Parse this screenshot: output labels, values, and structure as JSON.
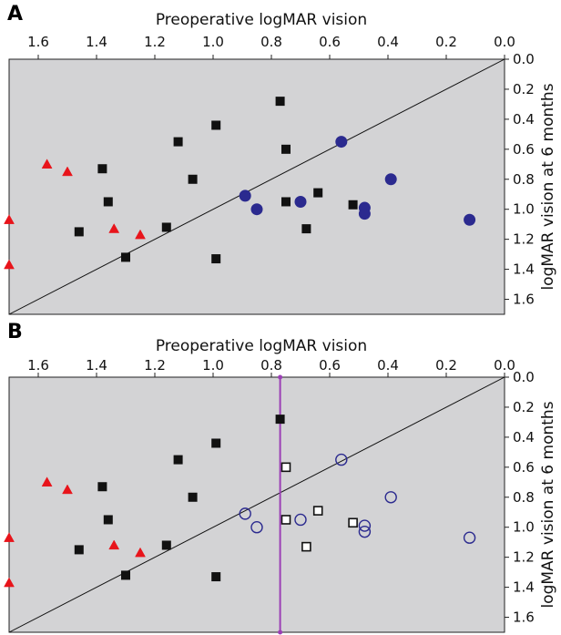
{
  "chart_data": [
    {
      "panel": "A",
      "type": "scatter",
      "title": "",
      "xlabel": "Preoperative logMAR vision",
      "ylabel": "logMAR vision at 6 months",
      "x_axis": {
        "reversed": true,
        "position": "top",
        "range": [
          1.7,
          0.0
        ],
        "ticks": [
          "1.6",
          "1.4",
          "1.2",
          "1.0",
          "0.8",
          "0.6",
          "0.4",
          "0.2",
          "0.0"
        ]
      },
      "y_axis": {
        "reversed": true,
        "position": "right",
        "range": [
          0.0,
          1.7
        ],
        "ticks": [
          "0.0",
          "0.2",
          "0.4",
          "0.6",
          "0.8",
          "1.0",
          "1.2",
          "1.4",
          "1.6"
        ]
      },
      "background": "#d3d3d5",
      "diagonal": true,
      "vertical_line": null,
      "series": [
        {
          "marker": "triangle",
          "fill": "#e8141b",
          "stroke": "#e8141b",
          "points": [
            [
              1.7,
              1.07
            ],
            [
              1.7,
              1.37
            ],
            [
              1.57,
              0.7
            ],
            [
              1.5,
              0.75
            ],
            [
              1.34,
              1.13
            ],
            [
              1.25,
              1.17
            ]
          ]
        },
        {
          "marker": "square",
          "fill": "#111111",
          "stroke": "#111111",
          "points": [
            [
              1.46,
              1.15
            ],
            [
              1.38,
              0.73
            ],
            [
              1.36,
              0.95
            ],
            [
              1.3,
              1.32
            ],
            [
              1.16,
              1.12
            ],
            [
              1.12,
              0.55
            ],
            [
              1.07,
              0.8
            ],
            [
              0.99,
              0.44
            ],
            [
              0.99,
              1.33
            ],
            [
              0.77,
              0.28
            ],
            [
              0.75,
              0.6
            ],
            [
              0.75,
              0.95
            ],
            [
              0.68,
              1.13
            ],
            [
              0.64,
              0.89
            ],
            [
              0.52,
              0.97
            ]
          ]
        },
        {
          "marker": "circle",
          "fill": "#2b2a8f",
          "stroke": "#2b2a8f",
          "points": [
            [
              0.89,
              0.91
            ],
            [
              0.85,
              1.0
            ],
            [
              0.7,
              0.95
            ],
            [
              0.56,
              0.55
            ],
            [
              0.48,
              0.99
            ],
            [
              0.48,
              1.03
            ],
            [
              0.39,
              0.8
            ],
            [
              0.12,
              1.07
            ]
          ]
        }
      ]
    },
    {
      "panel": "B",
      "type": "scatter",
      "title": "",
      "xlabel": "Preoperative logMAR vision",
      "ylabel": "logMAR vision at 6 months",
      "x_axis": {
        "reversed": true,
        "position": "top",
        "range": [
          1.7,
          0.0
        ],
        "ticks": [
          "1.6",
          "1.4",
          "1.2",
          "1.0",
          "0.8",
          "0.6",
          "0.4",
          "0.2",
          "0.0"
        ]
      },
      "y_axis": {
        "reversed": true,
        "position": "right",
        "range": [
          0.0,
          1.7
        ],
        "ticks": [
          "0.0",
          "0.2",
          "0.4",
          "0.6",
          "0.8",
          "1.0",
          "1.2",
          "1.4",
          "1.6"
        ]
      },
      "background": "#d3d3d5",
      "diagonal": true,
      "vertical_line": {
        "x": 0.77,
        "color": "#9b3fb5"
      },
      "series": [
        {
          "marker": "triangle",
          "fill": "#e8141b",
          "stroke": "#e8141b",
          "points": [
            [
              1.7,
              1.07
            ],
            [
              1.7,
              1.37
            ],
            [
              1.57,
              0.7
            ],
            [
              1.5,
              0.75
            ],
            [
              1.34,
              1.12
            ],
            [
              1.25,
              1.17
            ]
          ]
        },
        {
          "marker": "square",
          "fill": "#111111",
          "stroke": "#111111",
          "points": [
            [
              1.46,
              1.15
            ],
            [
              1.38,
              0.73
            ],
            [
              1.36,
              0.95
            ],
            [
              1.3,
              1.32
            ],
            [
              1.16,
              1.12
            ],
            [
              1.12,
              0.55
            ],
            [
              1.07,
              0.8
            ],
            [
              0.99,
              0.44
            ],
            [
              0.99,
              1.33
            ],
            [
              0.77,
              0.28
            ]
          ]
        },
        {
          "marker": "square",
          "fill": "none",
          "stroke": "#111111",
          "points": [
            [
              0.75,
              0.6
            ],
            [
              0.75,
              0.95
            ],
            [
              0.68,
              1.13
            ],
            [
              0.64,
              0.89
            ],
            [
              0.52,
              0.97
            ]
          ]
        },
        {
          "marker": "circle",
          "fill": "none",
          "stroke": "#2b2a8f",
          "points": [
            [
              0.89,
              0.91
            ],
            [
              0.85,
              1.0
            ],
            [
              0.7,
              0.95
            ],
            [
              0.56,
              0.55
            ],
            [
              0.48,
              0.99
            ],
            [
              0.48,
              1.03
            ],
            [
              0.39,
              0.8
            ],
            [
              0.12,
              1.07
            ]
          ]
        }
      ]
    }
  ]
}
